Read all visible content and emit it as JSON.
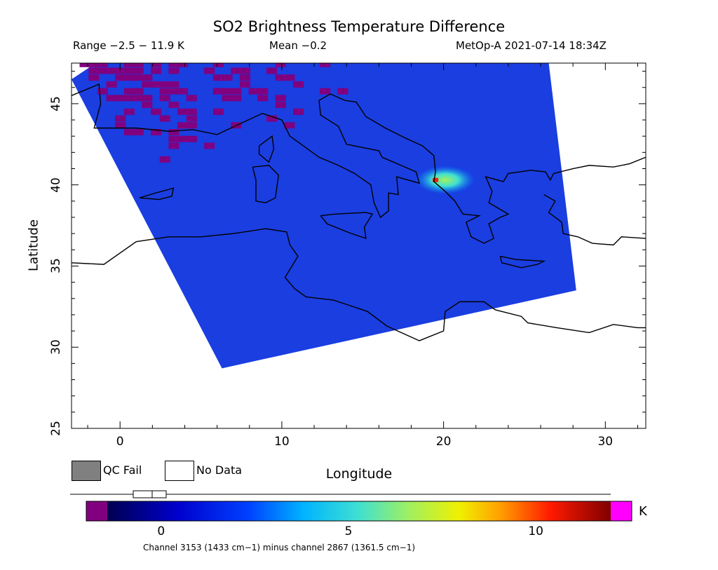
{
  "title": "SO2 Brightness Temperature Difference",
  "header": {
    "range": "Range −2.5 − 11.9 K",
    "mean": "Mean −0.2",
    "satellite": "MetOp-A 2021-07-14 18:34Z"
  },
  "map": {
    "xlabel": "Longitude",
    "ylabel": "Latitude",
    "x_range": [
      -3,
      32.5
    ],
    "y_range": [
      25,
      47.5
    ],
    "x_ticks": [
      0,
      10,
      20,
      30
    ],
    "y_ticks": [
      25,
      30,
      35,
      40,
      45
    ],
    "swath_corners_lonlat": [
      [
        -3,
        46.5
      ],
      [
        -1.5,
        47.5
      ],
      [
        26.5,
        47.5
      ],
      [
        28.2,
        33.5
      ],
      [
        6.3,
        28.7
      ]
    ],
    "so2_plume_center_lonlat": [
      19.5,
      40.3
    ],
    "so2_plume_max_K": 11.9
  },
  "legend": {
    "qc_fail_label": "QC Fail",
    "qc_fail_color": "#808080",
    "no_data_label": "No Data",
    "no_data_color": "#ffffff"
  },
  "colorbar": {
    "unit": "K",
    "range": [
      -2,
      12
    ],
    "ticks": [
      0,
      5,
      10
    ],
    "under_color": "#800080",
    "over_color": "#ff00ff"
  },
  "caption": "Channel 3153 (1433 cm−1) minus channel 2867 (1361.5 cm−1)"
}
